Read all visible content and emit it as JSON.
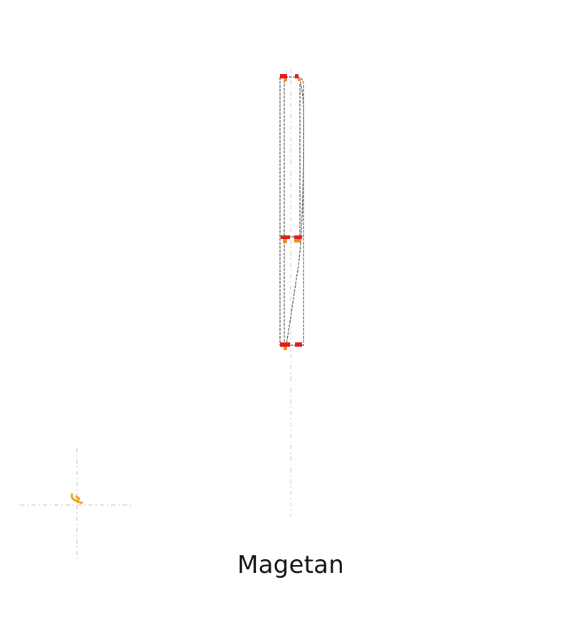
{
  "diagram": {
    "label": "Magetan",
    "colors": {
      "background": "#ffffff",
      "outline": "#6f6f6f",
      "center_line": "#cfcfcf",
      "red_mark": "#e31b1b",
      "orange_mark": "#f08a24",
      "compass_mark": "#f2a01c"
    }
  }
}
